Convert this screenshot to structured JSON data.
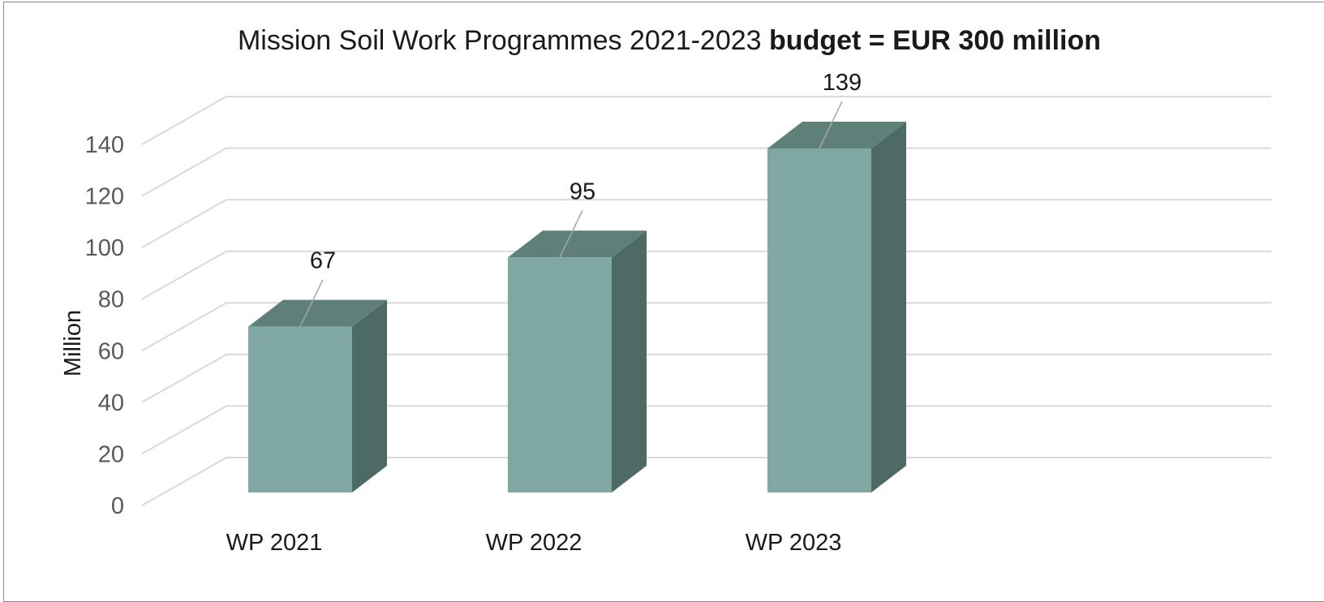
{
  "chart_data": {
    "type": "bar",
    "title": "Mission Soil Work Programmes 2021-2023",
    "title_bold": "budget = EUR 300 million",
    "xlabel": "",
    "ylabel": "Million",
    "categories": [
      "WP 2021",
      "WP 2022",
      "WP 2023"
    ],
    "values": [
      67,
      95,
      139
    ],
    "data_labels": [
      "67",
      "95",
      "139"
    ],
    "y_ticks": [
      "0",
      "20",
      "40",
      "60",
      "80",
      "100",
      "120",
      "140"
    ],
    "ylim": [
      0,
      140
    ],
    "grid": true,
    "style": "3d-column",
    "colors": {
      "front": "#7fa7a3",
      "top": "#5e8079",
      "side": "#4e6a65",
      "grid": "#d9d9d9",
      "leader": "#a6a6a6"
    }
  }
}
